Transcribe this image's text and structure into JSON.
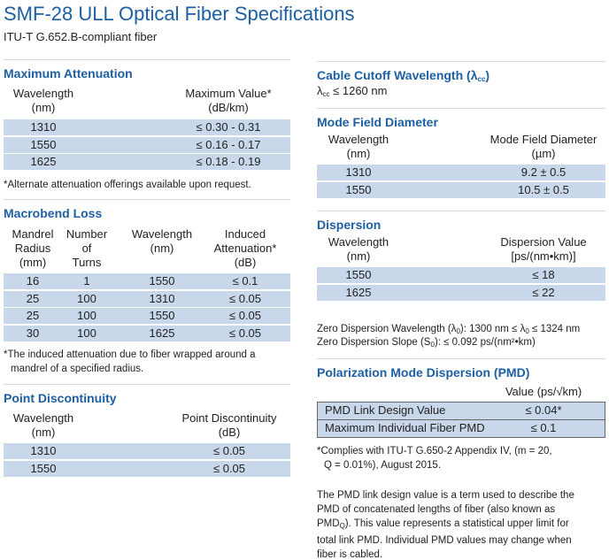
{
  "header": {
    "title": "SMF-28 ULL Optical Fiber Specifications",
    "subtitle": "ITU-T G.652.B-compliant fiber"
  },
  "max_attenuation": {
    "heading": "Maximum Attenuation",
    "columns": [
      "Wavelength\n(nm)",
      "Maximum Value*\n(dB/km)"
    ],
    "rows": [
      [
        "1310",
        "≤ 0.30 - 0.31"
      ],
      [
        "1550",
        "≤ 0.16 - 0.17"
      ],
      [
        "1625",
        "≤ 0.18 - 0.19"
      ]
    ],
    "note": "*Alternate attenuation offerings available upon request."
  },
  "macrobend_loss": {
    "heading": "Macrobend Loss",
    "columns": [
      "Mandrel\nRadius\n(mm)",
      "Number\nof\nTurns",
      "Wavelength\n(nm)",
      "Induced\nAttenuation*\n(dB)"
    ],
    "rows": [
      [
        "16",
        "1",
        "1550",
        "≤ 0.1"
      ],
      [
        "25",
        "100",
        "1310",
        "≤ 0.05"
      ],
      [
        "25",
        "100",
        "1550",
        "≤ 0.05"
      ],
      [
        "30",
        "100",
        "1625",
        "≤ 0.05"
      ]
    ],
    "note": "*The induced attenuation due to fiber wrapped around a\nmandrel of a specified radius."
  },
  "point_discontinuity": {
    "heading": "Point Discontinuity",
    "columns": [
      "Wavelength\n(nm)",
      "Point Discontinuity\n(dB)"
    ],
    "rows": [
      [
        "1310",
        "≤ 0.05"
      ],
      [
        "1550",
        "≤ 0.05"
      ]
    ]
  },
  "cable_cutoff": {
    "heading": [
      "Cable Cutoff Wavelength (λ",
      "cc",
      ")"
    ],
    "value": [
      "λ",
      "cc",
      " ≤ 1260 nm"
    ]
  },
  "mode_field_diameter": {
    "heading": "Mode Field Diameter",
    "columns": [
      "Wavelength\n(nm)",
      "Mode Field Diameter\n(µm)"
    ],
    "rows": [
      [
        "1310",
        "9.2 ± 0.5"
      ],
      [
        "1550",
        "10.5 ± 0.5"
      ]
    ]
  },
  "dispersion": {
    "heading": "Dispersion",
    "columns": [
      "Wavelength\n(nm)",
      "Dispersion Value\n[ps/(nm•km)]"
    ],
    "rows": [
      [
        "1550",
        "≤ 18"
      ],
      [
        "1625",
        "≤ 22"
      ]
    ],
    "zero_wavelength": [
      "Zero Dispersion Wavelength (λ",
      "0",
      "): 1300 nm ≤ λ",
      "0",
      " ≤ 1324 nm"
    ],
    "zero_slope": [
      "Zero Dispersion Slope (S",
      "0",
      "): ≤ 0.092 ps/(nm²•km)"
    ]
  },
  "pmd": {
    "heading": "Polarization Mode Dispersion (PMD)",
    "column": "Value (ps/√km)",
    "rows": [
      [
        "PMD Link Design Value",
        "≤ 0.04*"
      ],
      [
        "Maximum Individual Fiber PMD",
        "≤ 0.1"
      ]
    ],
    "note": "*Complies with ITU-T G.650-2 Appendix IV, (m = 20,\nQ = 0.01%), August 2015.",
    "paragraph": [
      "The PMD link design value is a term used to describe the\nPMD of concatenated lengths of fiber (also known as\nPMD",
      "Q",
      "). This value represents a statistical upper limit for\ntotal link PMD. Individual PMD values may change when\nfiber is cabled."
    ]
  }
}
